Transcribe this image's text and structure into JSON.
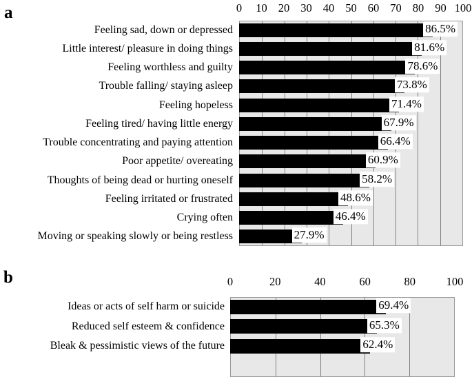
{
  "figure": {
    "background": "#ffffff",
    "colors": {
      "bar_fill": "#000000",
      "plot_background": "#e8e8e8",
      "gridline": "#808080",
      "plot_border": "#999999",
      "value_label_background": "#ffffff",
      "text": "#000000"
    }
  },
  "chart_data": [
    {
      "panel_label": "a",
      "type": "bar",
      "orientation": "horizontal",
      "axis_position": "top",
      "xlim": [
        0,
        100
      ],
      "ticks": [
        0,
        10,
        20,
        30,
        40,
        50,
        60,
        70,
        80,
        90,
        100
      ],
      "grid": "vertical gridline at every tick",
      "legend": "none",
      "unit": "percent",
      "categories": [
        "Feeling sad, down or depressed",
        "Little interest/ pleasure in doing things",
        "Feeling worthless and guilty",
        "Trouble falling/ staying asleep",
        "Feeling hopeless",
        "Feeling tired/ having little energy",
        "Trouble concentrating and paying attention",
        "Poor appetite/ overeating",
        "Thoughts of being dead or hurting oneself",
        "Feeling irritated or frustrated",
        "Crying often",
        "Moving or speaking slowly or being restless"
      ],
      "values": [
        86.5,
        81.6,
        78.6,
        73.8,
        71.4,
        67.9,
        66.4,
        60.9,
        58.2,
        48.6,
        46.4,
        27.9
      ],
      "value_labels": [
        "86.5%",
        "81.6%",
        "78.6%",
        "73.8%",
        "71.4%",
        "67.9%",
        "66.4%",
        "60.9%",
        "58.2%",
        "48.6%",
        "46.4%",
        "27.9%"
      ]
    },
    {
      "panel_label": "b",
      "type": "bar",
      "orientation": "horizontal",
      "axis_position": "top",
      "xlim": [
        0,
        100
      ],
      "ticks": [
        0,
        20,
        40,
        60,
        80,
        100
      ],
      "grid": "vertical gridline at every tick",
      "legend": "none",
      "unit": "percent",
      "categories": [
        "Ideas or acts of self harm or suicide",
        "Reduced self esteem & confidence",
        "Bleak & pessimistic views of the future"
      ],
      "values": [
        69.4,
        65.3,
        62.4
      ],
      "value_labels": [
        "69.4%",
        "65.3%",
        "62.4%"
      ]
    }
  ]
}
